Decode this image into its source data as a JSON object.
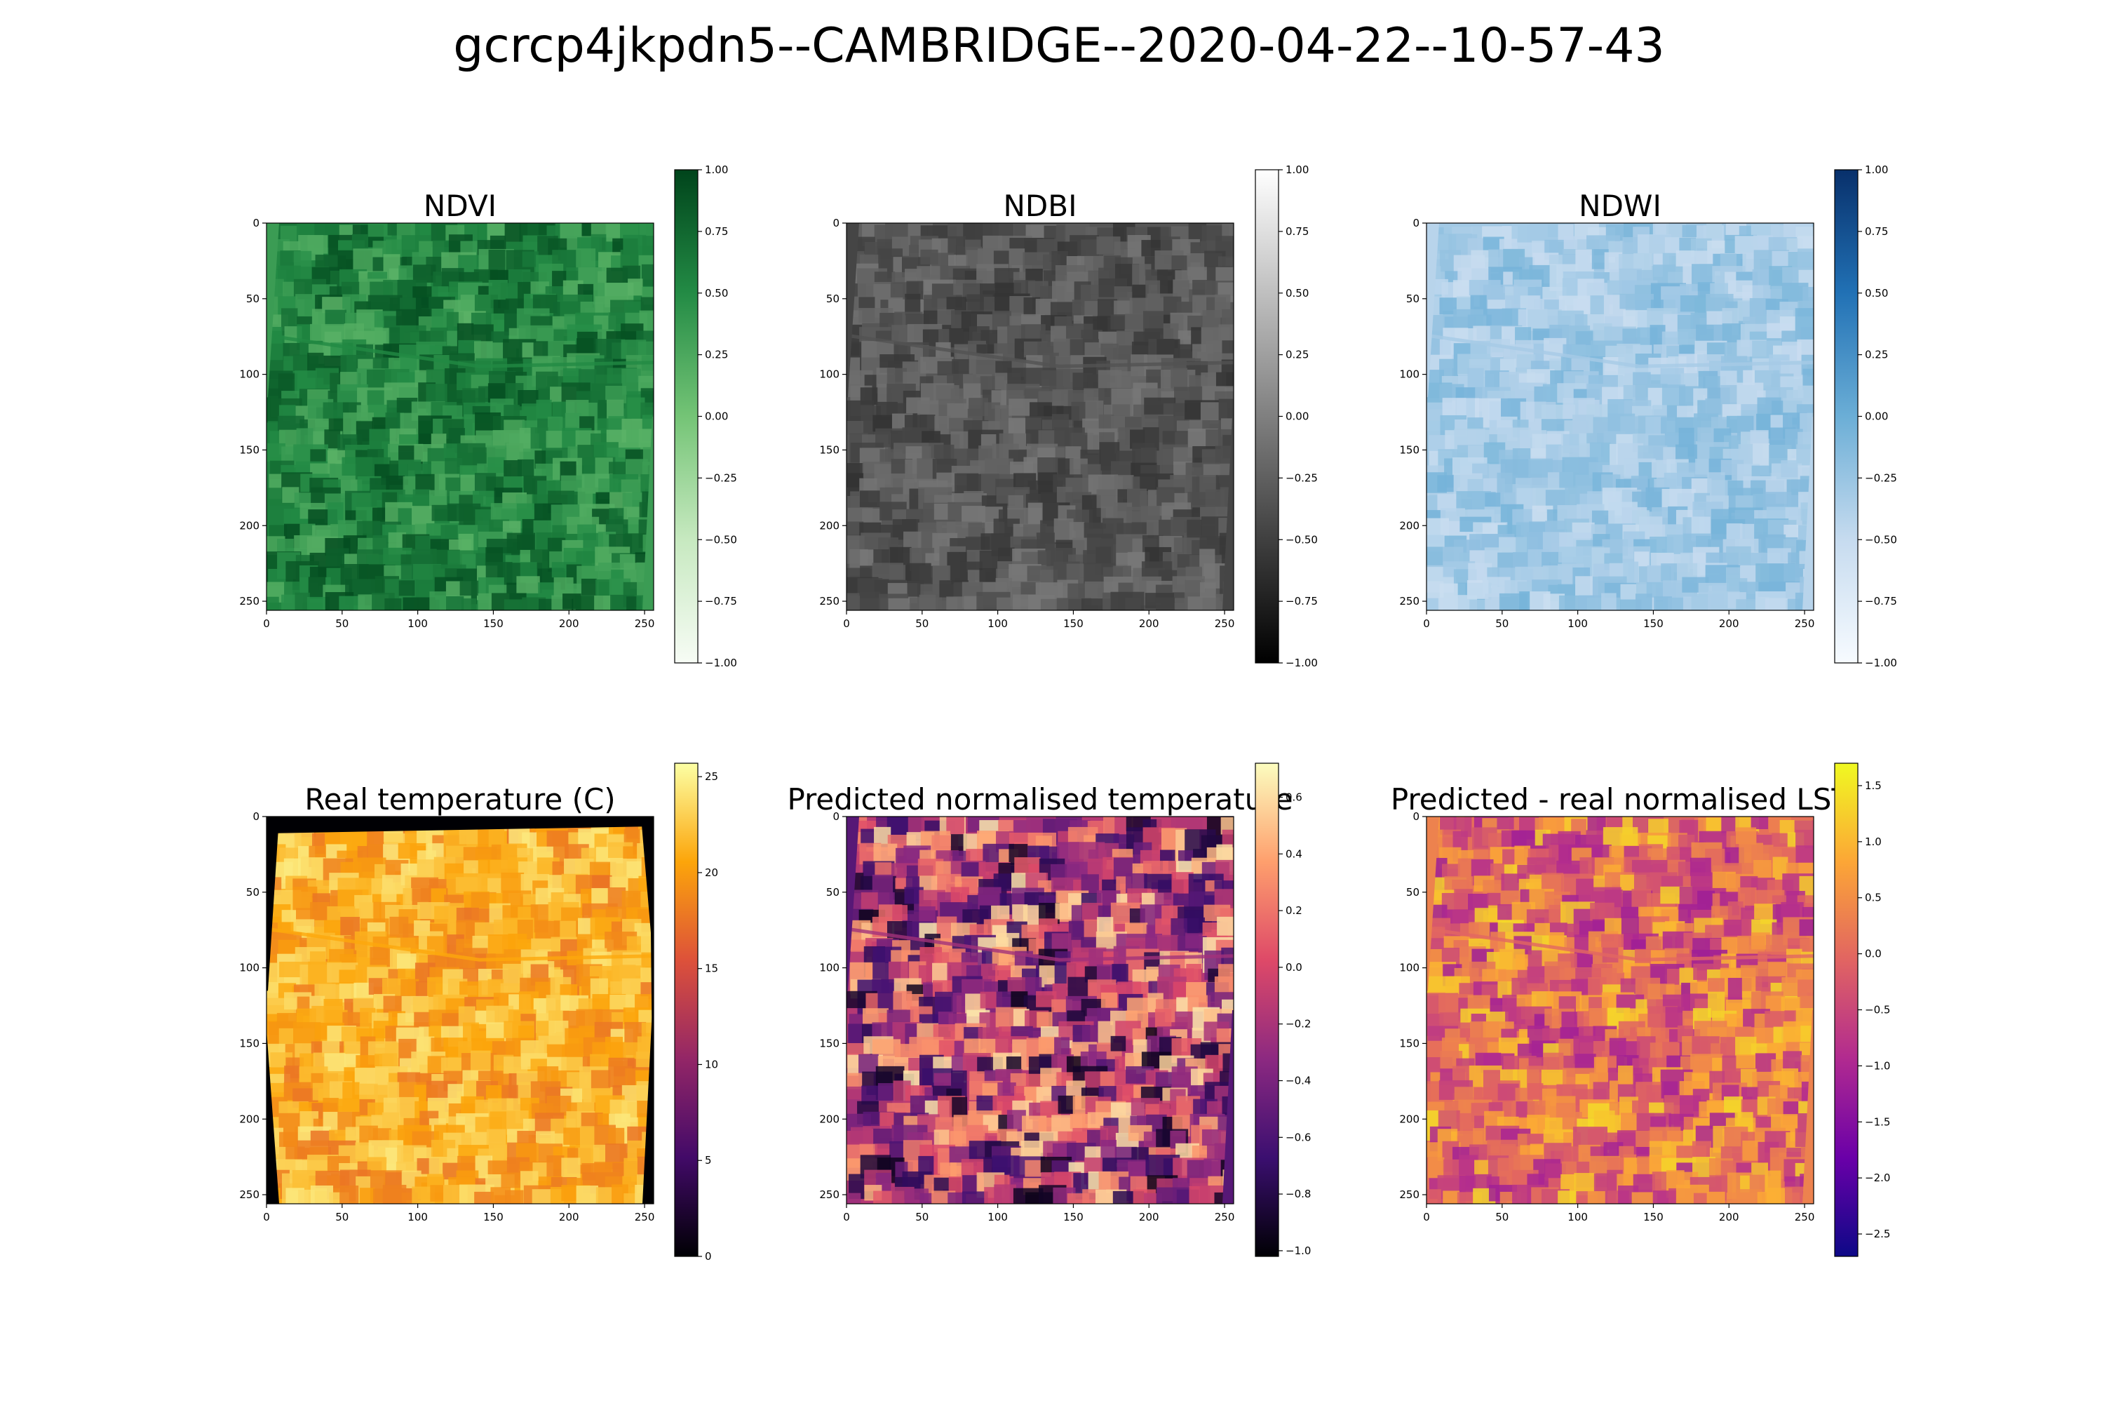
{
  "figure": {
    "title": "gcrcp4jkpdn5--CAMBRIDGE--2020-04-22--10-57-43"
  },
  "chart_data": [
    {
      "type": "heatmap",
      "title": "NDVI",
      "xlim": [
        0,
        256
      ],
      "ylim": [
        256,
        0
      ],
      "x_ticks": [
        "0",
        "50",
        "100",
        "150",
        "200",
        "250"
      ],
      "y_ticks": [
        "0",
        "50",
        "100",
        "150",
        "200",
        "250"
      ],
      "colormap": "Greens",
      "colorbar": {
        "min": -1.0,
        "max": 1.0,
        "ticks": [
          "1.00",
          "0.75",
          "0.50",
          "0.25",
          "0.00",
          "−0.25",
          "−0.50",
          "−0.75",
          "−1.00"
        ]
      },
      "palette": [
        "#f7fcf5",
        "#c7e9c0",
        "#74c476",
        "#238b45",
        "#00441b"
      ],
      "typical_range": [
        0.15,
        0.95
      ]
    },
    {
      "type": "heatmap",
      "title": "NDBI",
      "xlim": [
        0,
        256
      ],
      "ylim": [
        256,
        0
      ],
      "x_ticks": [
        "0",
        "50",
        "100",
        "150",
        "200",
        "250"
      ],
      "y_ticks": [
        "0",
        "50",
        "100",
        "150",
        "200",
        "250"
      ],
      "colormap": "gray",
      "colorbar": {
        "min": -1.0,
        "max": 1.0,
        "ticks": [
          "1.00",
          "0.75",
          "0.50",
          "0.25",
          "0.00",
          "−0.25",
          "−0.50",
          "−0.75",
          "−1.00"
        ]
      },
      "palette": [
        "#000000",
        "#555555",
        "#aaaaaa",
        "#ffffff"
      ],
      "typical_range": [
        -0.6,
        -0.05
      ]
    },
    {
      "type": "heatmap",
      "title": "NDWI",
      "xlim": [
        0,
        256
      ],
      "ylim": [
        256,
        0
      ],
      "x_ticks": [
        "0",
        "50",
        "100",
        "150",
        "200",
        "250"
      ],
      "y_ticks": [
        "0",
        "50",
        "100",
        "150",
        "200",
        "250"
      ],
      "colormap": "Blues",
      "colorbar": {
        "min": -1.0,
        "max": 1.0,
        "ticks": [
          "1.00",
          "0.75",
          "0.50",
          "0.25",
          "0.00",
          "−0.25",
          "−0.50",
          "−0.75",
          "−1.00"
        ]
      },
      "palette": [
        "#f7fbff",
        "#c6dbef",
        "#6baed6",
        "#2171b5",
        "#08306b"
      ],
      "typical_range": [
        -0.55,
        -0.05
      ]
    },
    {
      "type": "heatmap",
      "title": "Real temperature (C)",
      "xlim": [
        0,
        256
      ],
      "ylim": [
        256,
        0
      ],
      "x_ticks": [
        "0",
        "50",
        "100",
        "150",
        "200",
        "250"
      ],
      "y_ticks": [
        "0",
        "50",
        "100",
        "150",
        "200",
        "250"
      ],
      "colormap": "inferno",
      "colorbar": {
        "min": 0,
        "max": 25.7,
        "ticks": [
          "25",
          "20",
          "15",
          "10",
          "5",
          "0"
        ]
      },
      "palette": [
        "#000004",
        "#420a68",
        "#932667",
        "#dd513a",
        "#fca50a",
        "#fcffa4"
      ],
      "typical_range": [
        17.5,
        24.5
      ]
    },
    {
      "type": "heatmap",
      "title": "Predicted normalised temperature",
      "xlim": [
        0,
        256
      ],
      "ylim": [
        256,
        0
      ],
      "x_ticks": [
        "0",
        "50",
        "100",
        "150",
        "200",
        "250"
      ],
      "y_ticks": [
        "0",
        "50",
        "100",
        "150",
        "200",
        "250"
      ],
      "colormap": "magma",
      "colorbar": {
        "min": -1.02,
        "max": 0.72,
        "ticks": [
          "0.6",
          "0.4",
          "0.2",
          "0.0",
          "−0.2",
          "−0.4",
          "−0.6",
          "−0.8",
          "−1.0"
        ]
      },
      "palette": [
        "#000004",
        "#3b0f70",
        "#8c2981",
        "#de4968",
        "#fe9f6d",
        "#fcfdbf"
      ],
      "typical_range": [
        -0.95,
        0.65
      ]
    },
    {
      "type": "heatmap",
      "title": "Predicted - real normalised LST",
      "xlim": [
        0,
        256
      ],
      "ylim": [
        256,
        0
      ],
      "x_ticks": [
        "0",
        "50",
        "100",
        "150",
        "200",
        "250"
      ],
      "y_ticks": [
        "0",
        "50",
        "100",
        "150",
        "200",
        "250"
      ],
      "colormap": "plasma",
      "colorbar": {
        "min": -2.7,
        "max": 1.7,
        "ticks": [
          "1.5",
          "1.0",
          "0.5",
          "0.0",
          "−0.5",
          "−1.0",
          "−1.5",
          "−2.0",
          "−2.5"
        ]
      },
      "palette": [
        "#0d0887",
        "#6a00a8",
        "#b12a90",
        "#e16462",
        "#fca636",
        "#f0f921"
      ],
      "typical_range": [
        -1.2,
        1.4
      ]
    }
  ]
}
